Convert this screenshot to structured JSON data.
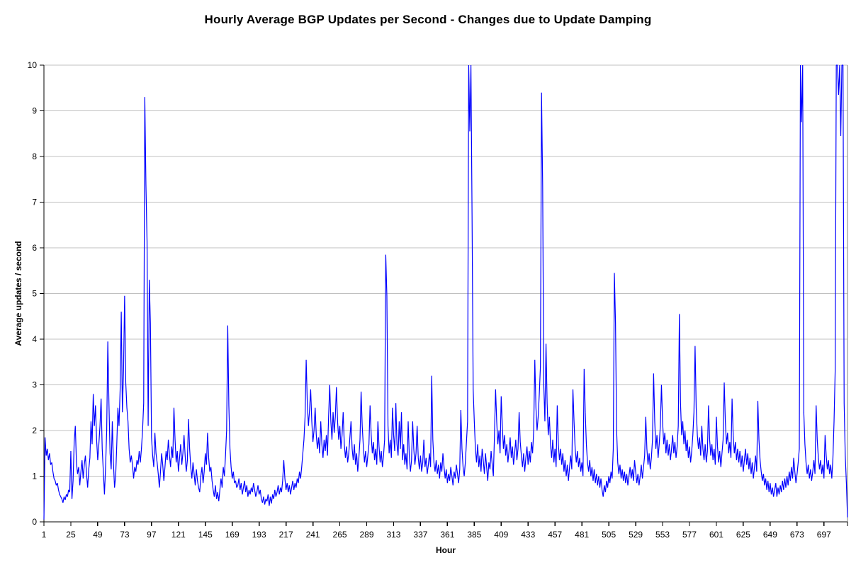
{
  "chart_title": "Hourly Average BGP Updates per Second - Changes due to Update Damping",
  "chart_data": {
    "type": "line",
    "title": "Hourly Average BGP Updates per Second - Changes due to Update Damping",
    "xlabel": "Hour",
    "ylabel": "Average updates / second",
    "ylim": [
      0,
      10
    ],
    "y_ticks": [
      0,
      1,
      2,
      3,
      4,
      5,
      6,
      7,
      8,
      9,
      10
    ],
    "x_ticks": [
      1,
      25,
      49,
      73,
      97,
      121,
      145,
      169,
      193,
      217,
      241,
      265,
      289,
      313,
      337,
      361,
      385,
      409,
      433,
      457,
      481,
      505,
      529,
      553,
      577,
      601,
      625,
      649,
      673,
      697
    ],
    "x_start": 1,
    "x_step_hours": 1,
    "grid": "horizontal",
    "legend": "none",
    "colors": {
      "line": "#0000ff",
      "grid": "#c0c0c0",
      "axis": "#000000",
      "plot_border": "#808080",
      "background": "#ffffff",
      "text": "#000000"
    },
    "series": [
      {
        "name": "Hourly average BGP updates per second",
        "color": "#0000ff",
        "values": [
          0.05,
          1.85,
          1.45,
          1.6,
          1.35,
          1.5,
          1.25,
          1.3,
          1.1,
          0.95,
          0.9,
          0.8,
          0.85,
          0.7,
          0.6,
          0.55,
          0.5,
          0.42,
          0.55,
          0.48,
          0.6,
          0.55,
          0.7,
          0.65,
          1.55,
          0.5,
          0.9,
          1.75,
          2.1,
          1.3,
          1.05,
          1.2,
          0.8,
          1.1,
          1.35,
          0.95,
          1.25,
          1.45,
          1.05,
          0.75,
          1.15,
          1.4,
          2.2,
          1.7,
          2.8,
          2.1,
          2.55,
          1.8,
          1.35,
          1.7,
          2.1,
          2.7,
          1.6,
          1.1,
          0.6,
          1.2,
          2.0,
          3.95,
          2.6,
          1.5,
          1.15,
          2.2,
          1.3,
          0.75,
          1.0,
          1.7,
          2.5,
          2.1,
          2.9,
          4.6,
          2.4,
          3.3,
          4.95,
          3.05,
          2.5,
          2.2,
          1.6,
          1.3,
          1.45,
          1.25,
          0.95,
          1.2,
          1.1,
          1.35,
          1.25,
          1.55,
          1.3,
          1.6,
          2.0,
          2.6,
          9.3,
          7.4,
          6.15,
          2.1,
          5.3,
          4.35,
          1.85,
          1.45,
          1.2,
          1.95,
          1.5,
          1.3,
          1.05,
          0.75,
          1.1,
          1.5,
          1.25,
          0.9,
          1.2,
          1.55,
          1.35,
          1.8,
          1.45,
          1.2,
          1.65,
          1.4,
          2.5,
          1.8,
          1.3,
          1.55,
          1.1,
          1.4,
          1.7,
          1.25,
          1.5,
          1.9,
          1.45,
          1.1,
          1.35,
          2.25,
          1.6,
          1.2,
          0.95,
          1.3,
          1.05,
          0.8,
          1.15,
          0.9,
          0.75,
          0.65,
          1.0,
          1.2,
          0.85,
          1.1,
          1.5,
          1.25,
          1.95,
          1.4,
          1.1,
          1.2,
          0.9,
          0.7,
          0.55,
          0.8,
          0.5,
          0.65,
          0.45,
          0.7,
          0.95,
          0.75,
          1.2,
          1.0,
          1.45,
          2.0,
          4.3,
          2.55,
          1.6,
          1.2,
          0.95,
          1.1,
          0.85,
          0.9,
          0.75,
          0.8,
          0.95,
          0.7,
          0.85,
          0.6,
          0.75,
          0.9,
          0.65,
          0.8,
          0.55,
          0.7,
          0.6,
          0.75,
          0.65,
          0.85,
          0.7,
          0.55,
          0.65,
          0.8,
          0.6,
          0.7,
          0.5,
          0.42,
          0.55,
          0.38,
          0.5,
          0.45,
          0.6,
          0.35,
          0.55,
          0.4,
          0.6,
          0.5,
          0.7,
          0.55,
          0.65,
          0.8,
          0.6,
          0.75,
          0.65,
          0.9,
          1.35,
          0.95,
          0.7,
          0.85,
          0.65,
          0.8,
          0.6,
          0.75,
          0.9,
          0.7,
          0.85,
          0.75,
          0.95,
          0.85,
          1.1,
          0.95,
          1.2,
          1.5,
          1.8,
          2.3,
          3.55,
          2.6,
          2.1,
          2.45,
          2.9,
          2.2,
          1.75,
          2.0,
          2.5,
          1.9,
          1.6,
          1.85,
          1.5,
          2.2,
          1.7,
          1.4,
          1.8,
          1.55,
          1.9,
          1.45,
          2.3,
          3.0,
          2.2,
          1.8,
          2.4,
          1.95,
          2.3,
          2.95,
          2.2,
          1.8,
          2.1,
          1.6,
          1.9,
          2.4,
          1.7,
          1.4,
          1.65,
          1.3,
          1.5,
          1.85,
          2.2,
          1.6,
          1.35,
          1.7,
          1.25,
          1.5,
          1.1,
          1.4,
          1.8,
          2.85,
          2.1,
          1.65,
          1.3,
          1.55,
          1.2,
          1.45,
          1.7,
          2.55,
          1.9,
          1.5,
          1.75,
          1.35,
          1.6,
          1.25,
          2.2,
          1.65,
          1.3,
          1.55,
          1.2,
          1.45,
          1.8,
          5.85,
          4.95,
          2.1,
          1.5,
          1.8,
          1.4,
          2.5,
          1.9,
          1.55,
          2.6,
          1.7,
          1.45,
          2.2,
          1.6,
          2.4,
          1.35,
          1.7,
          1.25,
          1.5,
          1.15,
          2.2,
          1.45,
          1.1,
          1.35,
          2.2,
          1.6,
          1.25,
          1.5,
          2.1,
          1.4,
          1.15,
          1.45,
          1.1,
          1.3,
          1.8,
          1.2,
          1.4,
          1.05,
          1.25,
          1.5,
          1.2,
          3.2,
          1.8,
          1.3,
          1.1,
          1.35,
          1.05,
          1.25,
          0.95,
          1.3,
          1.1,
          1.5,
          1.2,
          0.95,
          1.15,
          0.85,
          1.05,
          0.9,
          1.2,
          1.0,
          0.8,
          1.1,
          0.95,
          1.25,
          1.05,
          0.85,
          1.15,
          2.45,
          1.6,
          1.2,
          1.0,
          1.3,
          1.75,
          2.2,
          10,
          8.55,
          10,
          6.7,
          2.9,
          2.2,
          1.6,
          1.3,
          1.7,
          1.2,
          1.45,
          1.1,
          1.6,
          1.35,
          1.05,
          1.5,
          1.2,
          0.9,
          1.3,
          1.15,
          1.55,
          1.25,
          1.0,
          1.9,
          2.9,
          2.2,
          1.7,
          2.0,
          1.5,
          2.75,
          2.1,
          1.6,
          1.9,
          1.45,
          1.7,
          1.3,
          1.55,
          1.85,
          1.4,
          1.65,
          1.25,
          1.5,
          1.8,
          1.35,
          1.6,
          2.4,
          1.75,
          1.45,
          1.2,
          1.5,
          1.1,
          1.4,
          1.65,
          1.25,
          1.55,
          1.3,
          1.75,
          1.5,
          2.0,
          3.55,
          2.5,
          2.0,
          2.3,
          2.8,
          3.4,
          9.4,
          7.35,
          3.0,
          2.2,
          3.9,
          2.6,
          1.9,
          2.3,
          1.7,
          1.4,
          1.8,
          1.3,
          1.6,
          1.2,
          2.55,
          1.7,
          1.35,
          1.6,
          1.25,
          1.5,
          1.1,
          1.35,
          1.0,
          1.25,
          0.9,
          1.2,
          1.45,
          1.15,
          2.9,
          2.2,
          1.6,
          1.3,
          1.55,
          1.2,
          1.4,
          1.1,
          1.3,
          1.0,
          3.35,
          2.4,
          1.7,
          1.3,
          1.1,
          1.35,
          1.0,
          1.2,
          0.9,
          1.15,
          0.85,
          1.05,
          0.8,
          1.0,
          0.75,
          0.95,
          0.7,
          0.55,
          0.8,
          0.65,
          0.9,
          0.75,
          1.0,
          0.85,
          1.1,
          0.95,
          1.6,
          5.45,
          4.35,
          2.0,
          1.3,
          1.05,
          1.25,
          0.95,
          1.15,
          0.9,
          1.1,
          0.85,
          1.05,
          0.8,
          1.0,
          1.2,
          0.95,
          1.15,
          0.9,
          1.35,
          1.1,
          0.85,
          1.05,
          0.8,
          1.0,
          1.25,
          0.95,
          1.2,
          1.45,
          2.3,
          1.6,
          1.25,
          1.5,
          1.15,
          1.4,
          1.8,
          3.25,
          2.2,
          1.6,
          1.9,
          1.4,
          1.7,
          2.1,
          3.0,
          2.2,
          1.7,
          1.95,
          1.5,
          1.8,
          1.45,
          1.7,
          1.35,
          1.6,
          1.9,
          1.5,
          1.75,
          1.4,
          1.65,
          2.1,
          4.55,
          2.6,
          1.9,
          2.2,
          1.7,
          2.0,
          1.55,
          1.8,
          1.4,
          1.65,
          1.3,
          1.55,
          1.9,
          2.4,
          3.85,
          2.5,
          1.9,
          1.6,
          1.85,
          1.45,
          2.1,
          1.6,
          1.35,
          1.7,
          1.3,
          1.55,
          2.55,
          1.8,
          1.45,
          1.7,
          1.35,
          1.6,
          1.25,
          2.3,
          1.65,
          1.3,
          1.55,
          1.2,
          1.5,
          1.8,
          3.05,
          2.2,
          1.7,
          1.95,
          1.5,
          1.75,
          1.4,
          2.7,
          1.9,
          1.5,
          1.75,
          1.35,
          1.6,
          1.3,
          1.55,
          1.2,
          1.45,
          1.1,
          1.35,
          1.6,
          1.25,
          1.5,
          1.15,
          1.4,
          1.05,
          1.3,
          0.95,
          1.2,
          1.45,
          1.1,
          2.65,
          1.8,
          1.35,
          1.1,
          0.9,
          1.05,
          0.8,
          0.95,
          0.7,
          0.9,
          0.65,
          0.85,
          0.6,
          0.75,
          0.55,
          0.7,
          0.85,
          0.55,
          0.75,
          0.6,
          0.8,
          0.65,
          0.9,
          0.7,
          0.95,
          0.75,
          1.0,
          0.8,
          1.1,
          0.9,
          1.2,
          0.95,
          1.4,
          1.1,
          0.85,
          1.05,
          1.3,
          1.6,
          10,
          8.75,
          10,
          2.4,
          1.7,
          1.3,
          1.05,
          1.25,
          0.95,
          1.15,
          0.9,
          1.1,
          1.35,
          1.05,
          2.55,
          1.8,
          1.4,
          1.15,
          1.35,
          1.05,
          1.25,
          0.95,
          1.9,
          1.45,
          1.15,
          1.35,
          1.05,
          1.25,
          0.95,
          1.4,
          2.2,
          3.3,
          10,
          10,
          9.35,
          10,
          8.45,
          10,
          10,
          2.6,
          1.45,
          0.85,
          0.1
        ]
      }
    ]
  }
}
